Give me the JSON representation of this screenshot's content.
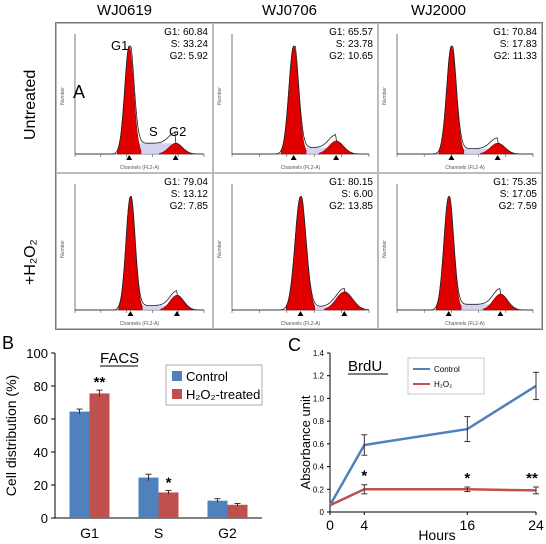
{
  "panel_a": {
    "letter": "A",
    "columns": [
      "WJ0619",
      "WJ0706",
      "WJ2000"
    ],
    "rows": [
      "Untreated",
      "+H₂O₂"
    ],
    "peak_labels": {
      "g1": "G1",
      "s": "S",
      "g2": "G2"
    },
    "axis_label_x": "Channels (FL2-A)",
    "axis_label_y": "Number",
    "histograms": [
      {
        "line": "WJ0619",
        "condition": "Untreated",
        "g1_label": "G1:",
        "g1": "60.84",
        "s_label": "S:",
        "s": "33.24",
        "g2_label": "G2:",
        "g2": "5.92"
      },
      {
        "line": "WJ0706",
        "condition": "Untreated",
        "g1_label": "G1:",
        "g1": "65.57",
        "s_label": "S:",
        "s": "23.78",
        "g2_label": "G2:",
        "g2": "10.65"
      },
      {
        "line": "WJ2000",
        "condition": "Untreated",
        "g1_label": "G1:",
        "g1": "70.84",
        "s_label": "S:",
        "s": "17.83",
        "g2_label": "G2:",
        "g2": "11.33"
      },
      {
        "line": "WJ0619",
        "condition": "+H2O2",
        "g1_label": "G1:",
        "g1": "79.04",
        "s_label": "S:",
        "s": "13.12",
        "g2_label": "G2:",
        "g2": "7.85"
      },
      {
        "line": "WJ0706",
        "condition": "+H2O2",
        "g1_label": "G1:",
        "g1": "80.15",
        "s_label": "S:",
        "s": "6.00",
        "g2_label": "G2:",
        "g2": "13.85"
      },
      {
        "line": "WJ2000",
        "condition": "+H2O2",
        "g1_label": "G1:",
        "g1": "75.35",
        "s_label": "S:",
        "s": "17.05",
        "g2_label": "G2:",
        "g2": "7.59"
      }
    ]
  },
  "chart_data": [
    {
      "type": "bar",
      "panel": "B",
      "title": "FACS",
      "ylabel": "Cell distribution (%)",
      "xlabel": "",
      "categories": [
        "G1",
        "S",
        "G2"
      ],
      "ylim": [
        0,
        100
      ],
      "yticks": [
        0,
        20,
        40,
        60,
        80,
        100
      ],
      "series": [
        {
          "name": "Control",
          "color": "#4F81BD",
          "values": [
            64.5,
            24.5,
            10.5
          ],
          "errors": [
            1.5,
            2.0,
            1.2
          ]
        },
        {
          "name": "H₂O₂-treated",
          "color": "#C0504D",
          "values": [
            75.5,
            15.5,
            8.0
          ],
          "errors": [
            2.0,
            1.2,
            0.8
          ]
        }
      ],
      "significance": [
        {
          "category": "G1",
          "label": "**"
        },
        {
          "category": "S",
          "label": "*"
        }
      ],
      "legend": "top-right",
      "grid": false
    },
    {
      "type": "line",
      "panel": "C",
      "title": "BrdU",
      "xlabel": "Hours",
      "ylabel": "Absorbance unit",
      "x": [
        0,
        4,
        16,
        24
      ],
      "x_tick_labels": [
        "0",
        "4",
        "16",
        "24"
      ],
      "ylim": [
        0,
        1.4
      ],
      "yticks": [
        "0",
        "0.2",
        "0.4",
        "0.6",
        "0.8",
        "1.0",
        "1.2",
        "1.4"
      ],
      "series": [
        {
          "name": "Control",
          "color": "#4F81BD",
          "values": [
            0.06,
            0.59,
            0.73,
            1.11
          ],
          "errors": [
            0,
            0.09,
            0.11,
            0.12
          ]
        },
        {
          "name": "H₂O₂",
          "color": "#C0504D",
          "values": [
            0.06,
            0.2,
            0.2,
            0.19
          ],
          "errors": [
            0,
            0.04,
            0.02,
            0.03
          ]
        }
      ],
      "significance": [
        {
          "x": 4,
          "label": "*"
        },
        {
          "x": 16,
          "label": "*"
        },
        {
          "x": 24,
          "label": "**"
        }
      ],
      "legend": "top-left",
      "grid": false
    }
  ],
  "panel_b": {
    "letter": "B"
  },
  "panel_c": {
    "letter": "C"
  }
}
